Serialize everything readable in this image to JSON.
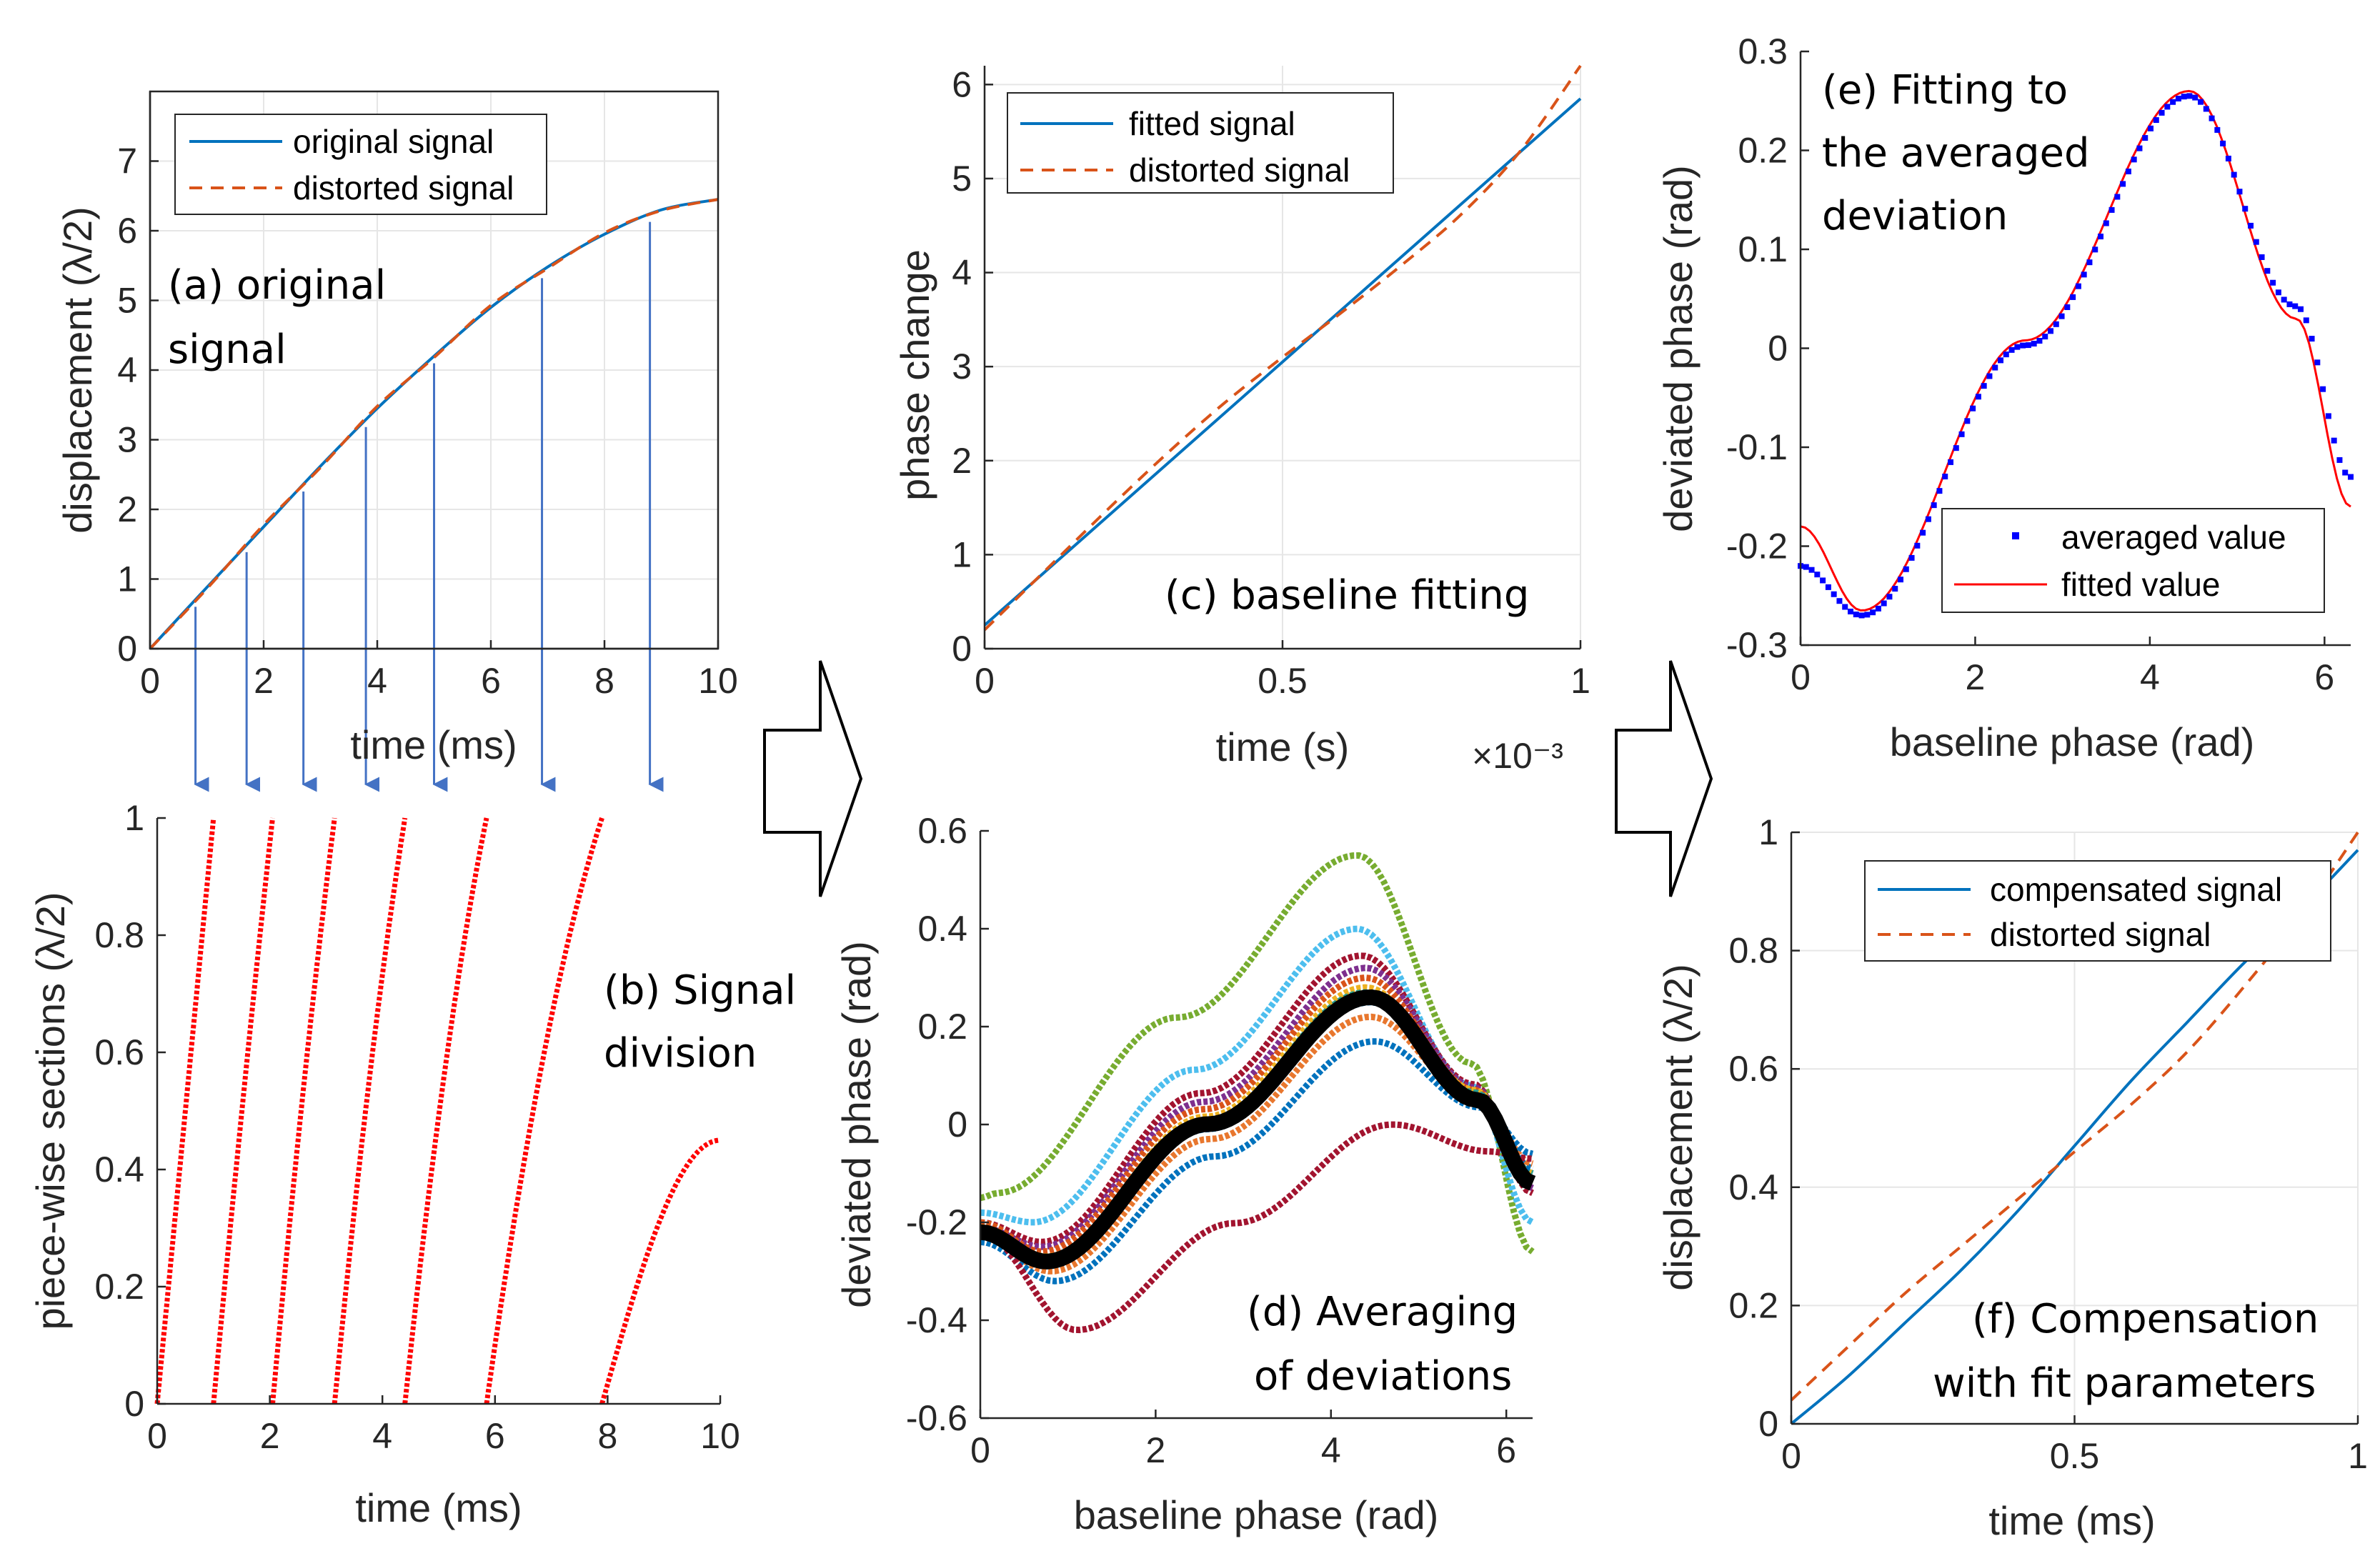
{
  "colors": {
    "blue": "#0072bd",
    "orange": "#d95319",
    "red": "#ff0000",
    "marker_blue": "#0000ff",
    "arrow": "#4472c4",
    "black": "#000000"
  },
  "chart_data": [
    {
      "id": "a",
      "type": "line",
      "annotation": [
        "(a) original",
        "signal"
      ],
      "xlabel": "time (ms)",
      "ylabel": "displacement (λ/2)",
      "xlim": [
        0,
        10
      ],
      "ylim": [
        0,
        8
      ],
      "xticks": [
        "0",
        "2",
        "4",
        "6",
        "8",
        "10"
      ],
      "yticks": [
        "0",
        "1",
        "2",
        "3",
        "4",
        "5",
        "6",
        "7"
      ],
      "grid": true,
      "legend_position": "top-left",
      "series": [
        {
          "name": "original signal",
          "style": "solid",
          "color": "#0072bd",
          "x": [
            0,
            1,
            2,
            3,
            4,
            5,
            6,
            7,
            8,
            9,
            10
          ],
          "y": [
            0,
            0.88,
            1.75,
            2.62,
            3.45,
            4.2,
            4.9,
            5.48,
            5.95,
            6.3,
            6.45
          ]
        },
        {
          "name": "distorted signal",
          "style": "dashed",
          "color": "#d95319",
          "x": [
            0,
            1,
            2,
            3,
            4,
            5,
            6,
            7,
            8,
            9,
            10
          ],
          "y": [
            0,
            0.86,
            1.78,
            2.6,
            3.48,
            4.18,
            4.93,
            5.46,
            5.97,
            6.29,
            6.45
          ]
        }
      ],
      "arrows_at_x": [
        0.8,
        1.7,
        2.7,
        3.8,
        5.0,
        6.9,
        8.8
      ]
    },
    {
      "id": "b",
      "type": "scatter",
      "annotation": [
        "(b) Signal",
        "division"
      ],
      "xlabel": "time (ms)",
      "ylabel": "piece-wise sections (λ/2)",
      "xlim": [
        0,
        10
      ],
      "ylim": [
        0,
        1
      ],
      "xticks": [
        "0",
        "2",
        "4",
        "6",
        "8",
        "10"
      ],
      "yticks": [
        "0",
        "0.2",
        "0.4",
        "0.6",
        "0.8",
        "1"
      ],
      "grid": false,
      "sections": [
        {
          "x": [
            0,
            1.0
          ],
          "y": [
            0,
            1
          ]
        },
        {
          "x": [
            1.0,
            2.05
          ],
          "y": [
            0,
            1
          ]
        },
        {
          "x": [
            2.05,
            3.15
          ],
          "y": [
            0,
            1
          ]
        },
        {
          "x": [
            3.15,
            4.4
          ],
          "y": [
            0,
            1
          ]
        },
        {
          "x": [
            4.4,
            5.85
          ],
          "y": [
            0,
            1
          ]
        },
        {
          "x": [
            5.85,
            7.9
          ],
          "y": [
            0,
            1
          ]
        },
        {
          "x": [
            7.9,
            10
          ],
          "y": [
            0,
            0.45
          ]
        }
      ]
    },
    {
      "id": "c",
      "type": "line",
      "annotation": [
        "(c) baseline fitting"
      ],
      "xlabel": "time (s)",
      "ylabel": "phase change",
      "exponent_label": "×10⁻³",
      "xlim": [
        0,
        1
      ],
      "ylim": [
        0,
        6.2
      ],
      "xticks": [
        "0",
        "0.5",
        "1"
      ],
      "yticks": [
        "0",
        "1",
        "2",
        "3",
        "4",
        "5",
        "6"
      ],
      "grid": true,
      "legend_position": "top-left",
      "series": [
        {
          "name": "fitted signal",
          "style": "solid",
          "color": "#0072bd",
          "x": [
            0,
            1
          ],
          "y": [
            0.25,
            5.85
          ]
        },
        {
          "name": "distorted signal",
          "style": "dashed",
          "color": "#d95319",
          "x": [
            0,
            0.1,
            0.2,
            0.3,
            0.4,
            0.5,
            0.6,
            0.7,
            0.8,
            0.9,
            1.0
          ],
          "y": [
            0.2,
            0.82,
            1.44,
            2.04,
            2.6,
            3.1,
            3.58,
            4.08,
            4.62,
            5.3,
            6.2
          ]
        }
      ]
    },
    {
      "id": "d",
      "type": "scatter",
      "annotation": [
        "(d) Averaging",
        "of deviations"
      ],
      "xlabel": "baseline phase (rad)",
      "ylabel": "deviated phase (rad)",
      "xlim": [
        0,
        6.3
      ],
      "ylim": [
        -0.6,
        0.6
      ],
      "xticks": [
        "0",
        "2",
        "4",
        "6"
      ],
      "yticks": [
        "-0.6",
        "-0.4",
        "-0.2",
        "0",
        "0.2",
        "0.4",
        "0.6"
      ],
      "grid": false,
      "series": [
        {
          "name": "green",
          "color": "#77ac30",
          "a0": -0.15,
          "min": -0.14,
          "xmin": 0.2,
          "max": 0.55,
          "xmax": 4.3,
          "end": -0.26
        },
        {
          "name": "lightblue",
          "color": "#4dbeee",
          "a0": -0.18,
          "min": -0.2,
          "xmin": 0.6,
          "max": 0.4,
          "xmax": 4.3,
          "end": -0.2
        },
        {
          "name": "crimson",
          "color": "#a2142f",
          "a0": -0.2,
          "min": -0.24,
          "xmin": 0.7,
          "max": 0.345,
          "xmax": 4.35,
          "end": -0.14
        },
        {
          "name": "purple",
          "color": "#7e2f8e",
          "a0": -0.21,
          "min": -0.25,
          "xmin": 0.7,
          "max": 0.32,
          "xmax": 4.4,
          "end": -0.13
        },
        {
          "name": "orange",
          "color": "#d95319",
          "a0": -0.2,
          "min": -0.26,
          "xmin": 0.7,
          "max": 0.3,
          "xmax": 4.4,
          "end": -0.12
        },
        {
          "name": "yellow",
          "color": "#edb120",
          "a0": -0.21,
          "min": -0.27,
          "xmin": 0.75,
          "max": 0.28,
          "xmax": 4.4,
          "end": -0.1
        },
        {
          "name": "teal",
          "color": "#2a9d8f",
          "a0": -0.22,
          "min": -0.28,
          "xmin": 0.75,
          "max": 0.27,
          "xmax": 4.4,
          "end": -0.1
        },
        {
          "name": "blue2",
          "color": "#0072bd",
          "a0": -0.23,
          "min": -0.29,
          "xmin": 0.75,
          "max": 0.25,
          "xmax": 4.45,
          "end": -0.09
        },
        {
          "name": "orange2",
          "color": "#e8772e",
          "a0": -0.23,
          "min": -0.3,
          "xmin": 0.8,
          "max": 0.22,
          "xmax": 4.45,
          "end": -0.08
        },
        {
          "name": "blue",
          "color": "#0072bd",
          "a0": -0.24,
          "min": -0.32,
          "xmin": 0.85,
          "max": 0.17,
          "xmax": 4.5,
          "end": -0.06
        },
        {
          "name": "darkred",
          "color": "#a2142f",
          "a0": -0.22,
          "min": -0.42,
          "xmin": 1.1,
          "max": 0.0,
          "xmax": 4.7,
          "end": -0.07
        },
        {
          "name": "average",
          "color": "#000000",
          "a0": -0.22,
          "min": -0.28,
          "xmin": 0.75,
          "max": 0.26,
          "xmax": 4.45,
          "end": -0.12,
          "bold": true
        }
      ]
    },
    {
      "id": "e",
      "type": "scatter",
      "annotation": [
        "(e) Fitting to",
        "the averaged",
        "deviation"
      ],
      "xlabel": "baseline phase (rad)",
      "ylabel": "deviated phase (rad)",
      "xlim": [
        0,
        6.3
      ],
      "ylim": [
        -0.3,
        0.3
      ],
      "xticks": [
        "0",
        "2",
        "4",
        "6"
      ],
      "yticks": [
        "-0.3",
        "-0.2",
        "-0.1",
        "0",
        "0.1",
        "0.2",
        "0.3"
      ],
      "grid": false,
      "legend_position": "bottom-right",
      "series": [
        {
          "name": "averaged value",
          "style": "markers",
          "color": "#0000ff",
          "a0": -0.22,
          "min": -0.27,
          "xmin": 0.7,
          "max": 0.255,
          "xmax": 4.45,
          "end": -0.13
        },
        {
          "name": "fitted value",
          "style": "solid",
          "color": "#ff0000",
          "a0": -0.18,
          "min": -0.265,
          "xmin": 0.7,
          "max": 0.26,
          "xmax": 4.45,
          "end": -0.16
        }
      ]
    },
    {
      "id": "f",
      "type": "line",
      "annotation": [
        "(f) Compensation",
        "with fit parameters"
      ],
      "xlabel": "time (ms)",
      "ylabel": "displacement (λ/2)",
      "xlim": [
        0,
        1
      ],
      "ylim": [
        0,
        1
      ],
      "xticks": [
        "0",
        "0.5",
        "1"
      ],
      "yticks": [
        "0",
        "0.2",
        "0.4",
        "0.6",
        "0.8",
        "1"
      ],
      "grid": true,
      "legend_position": "top-right",
      "series": [
        {
          "name": "compensated signal",
          "style": "solid",
          "color": "#0072bd",
          "x": [
            0,
            0.1,
            0.2,
            0.3,
            0.4,
            0.5,
            0.6,
            0.7,
            0.8,
            0.9,
            1.0
          ],
          "y": [
            0,
            0.08,
            0.17,
            0.26,
            0.36,
            0.47,
            0.58,
            0.68,
            0.78,
            0.87,
            0.97
          ]
        },
        {
          "name": "distorted signal",
          "style": "dashed",
          "color": "#d95319",
          "x": [
            0,
            0.1,
            0.2,
            0.3,
            0.4,
            0.5,
            0.6,
            0.7,
            0.8,
            0.9,
            1.0
          ],
          "y": [
            0.04,
            0.13,
            0.22,
            0.3,
            0.38,
            0.46,
            0.54,
            0.63,
            0.74,
            0.86,
            1.0
          ]
        }
      ]
    }
  ]
}
